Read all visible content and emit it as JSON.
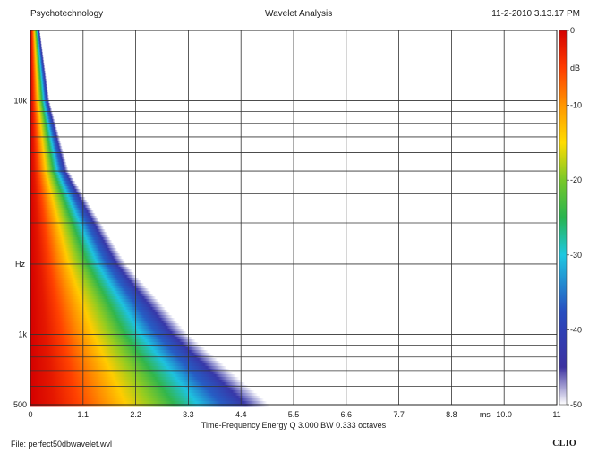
{
  "header": {
    "left": "Psychotechnology",
    "center": "Wavelet Analysis",
    "right": "11-2-2010 3.13.17 PM"
  },
  "footer": {
    "file": "File: perfect50dbwavelet.wvl",
    "brand": "CLIO"
  },
  "chart_data": {
    "type": "heatmap",
    "title": "Wavelet Analysis",
    "xlabel": "ms",
    "ylabel": "Hz",
    "caption": "Time-Frequency Energy  Q 3.000 BW 0.333 octaves",
    "xlim": [
      0,
      11
    ],
    "ylim": [
      500,
      20000
    ],
    "yscale": "log",
    "x_ticks": [
      "0",
      "1.1",
      "2.2",
      "3.3",
      "4.4",
      "5.5",
      "6.6",
      "7.7",
      "8.8",
      "10.0",
      "11"
    ],
    "y_ticks": [
      {
        "value": 10000,
        "label": "10k"
      },
      {
        "value": 1000,
        "label": "1k"
      },
      {
        "value": 500,
        "label": "500"
      }
    ],
    "colorbar": {
      "label": "dB",
      "range": [
        -50,
        0
      ],
      "ticks": [
        "0",
        "-10",
        "-20",
        "-30",
        "-40",
        "-50"
      ],
      "colors": [
        "#d40000",
        "#ff6a00",
        "#ffd000",
        "#30b040",
        "#22c8e0",
        "#2a3caa",
        "#ffffff"
      ]
    },
    "energy_decay_edge": [
      {
        "freq_hz": 20000,
        "time_ms": 0.2
      },
      {
        "freq_hz": 10000,
        "time_ms": 0.4
      },
      {
        "freq_hz": 5000,
        "time_ms": 0.8
      },
      {
        "freq_hz": 2000,
        "time_ms": 2.0
      },
      {
        "freq_hz": 1000,
        "time_ms": 3.3
      },
      {
        "freq_hz": 500,
        "time_ms": 5.0
      }
    ],
    "grid": true
  }
}
